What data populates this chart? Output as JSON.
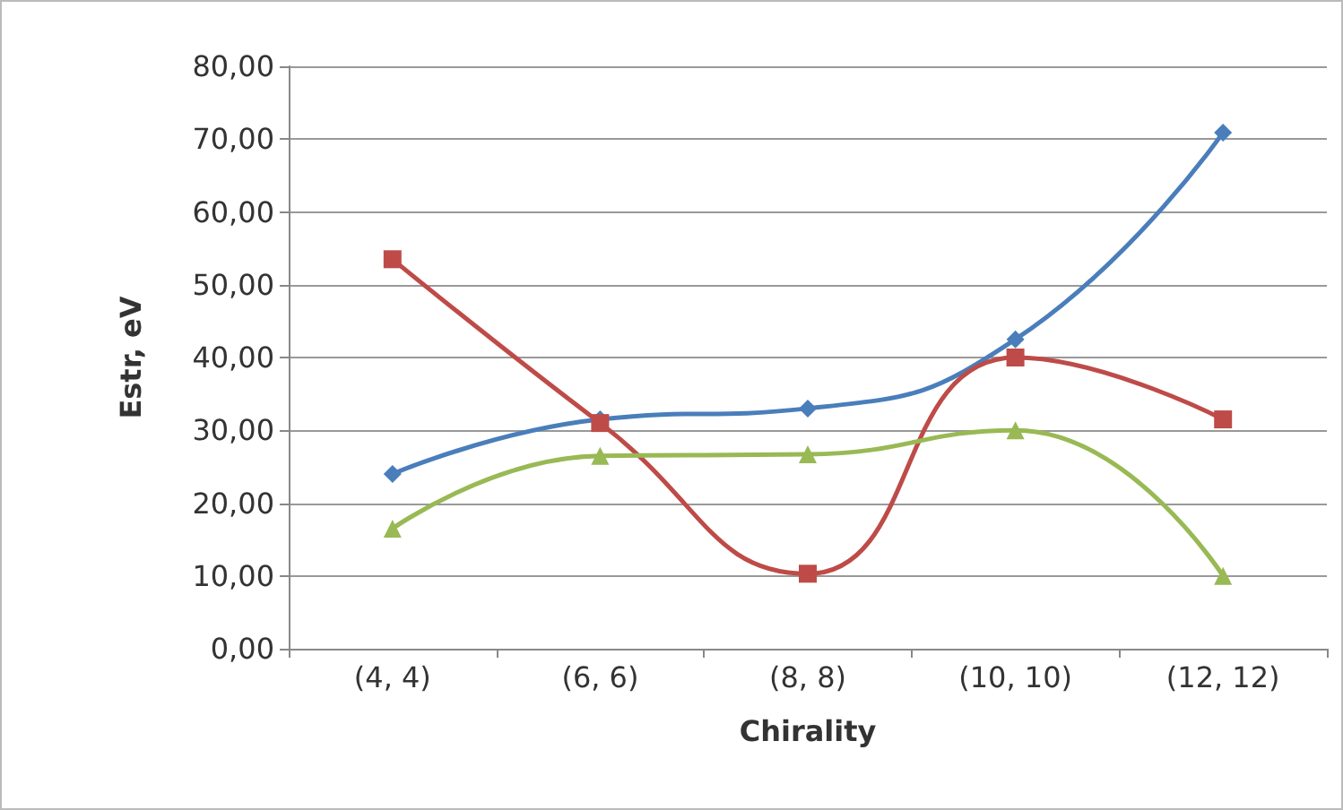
{
  "chart_data": {
    "type": "line",
    "xlabel": "Chirality",
    "ylabel": "Estr, eV",
    "categories": [
      "(4, 4)",
      "(6, 6)",
      "(8, 8)",
      "(10, 10)",
      "(12, 12)"
    ],
    "series": [
      {
        "color": "#4a7ebb",
        "marker": "diamond",
        "values": [
          24.0,
          31.5,
          33.0,
          42.5,
          70.9
        ]
      },
      {
        "color": "#be4b48",
        "marker": "square",
        "values": [
          53.5,
          31.0,
          10.3,
          40.0,
          31.5
        ]
      },
      {
        "color": "#98b954",
        "marker": "triangle",
        "values": [
          16.5,
          26.5,
          26.7,
          30.0,
          10.0
        ]
      }
    ],
    "ylim": [
      0,
      80
    ],
    "yticks": [
      {
        "value": 0,
        "label": "0,00"
      },
      {
        "value": 10,
        "label": "10,00"
      },
      {
        "value": 20,
        "label": "20,00"
      },
      {
        "value": 30,
        "label": "30,00"
      },
      {
        "value": 40,
        "label": "40,00"
      },
      {
        "value": 50,
        "label": "50,00"
      },
      {
        "value": 60,
        "label": "60,00"
      },
      {
        "value": 70,
        "label": "70,00"
      },
      {
        "value": 80,
        "label": "80,00"
      }
    ],
    "grid": "y",
    "line_style": "solid"
  }
}
